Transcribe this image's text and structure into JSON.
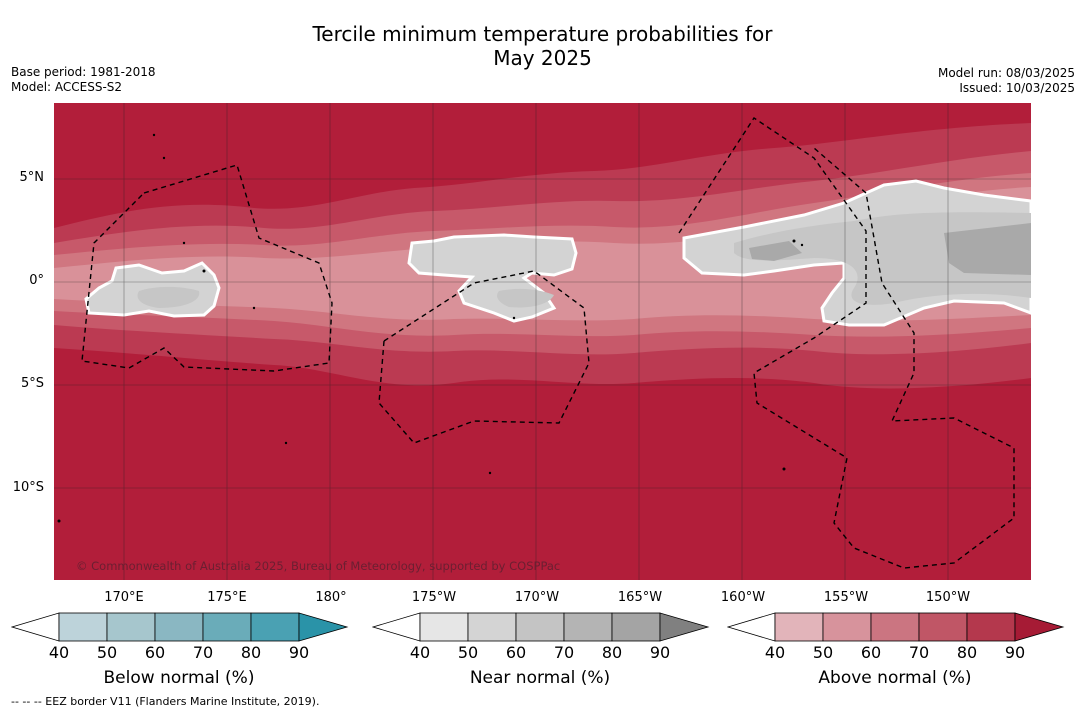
{
  "title_line1": "Tercile minimum temperature probabilities for",
  "title_line2": "May 2025",
  "base_period": "Base period: 1981-2018",
  "model": "Model: ACCESS-S2",
  "model_run": "Model run: 08/03/2025",
  "issued": "Issued: 10/03/2025",
  "copyright": "© Commonwealth of Australia 2025, Bureau of Meteorology, supported by COSPPac",
  "footer": "--  --  -- EEZ border V11 (Flanders Marine Institute, 2019).",
  "latitude_labels": [
    "5°N",
    "0°",
    "5°S",
    "10°S"
  ],
  "longitude_labels": [
    "170°E",
    "175°E",
    "180°",
    "175°W",
    "170°W",
    "165°W",
    "160°W",
    "155°W",
    "150°W"
  ],
  "colorbars": [
    {
      "name": "Below normal (%)",
      "ticks": [
        "40",
        "50",
        "60",
        "70",
        "80",
        "90"
      ],
      "colors": [
        "#ffffff",
        "#bdd3da",
        "#a6c6cd",
        "#8ab7c2",
        "#6aacb9",
        "#4aa1b3",
        "#2a93a8"
      ]
    },
    {
      "name": "Near normal (%)",
      "ticks": [
        "40",
        "50",
        "60",
        "70",
        "80",
        "90"
      ],
      "colors": [
        "#ffffff",
        "#e6e6e6",
        "#d4d4d4",
        "#c4c4c4",
        "#b4b4b4",
        "#a4a4a4",
        "#808080"
      ]
    },
    {
      "name": "Above normal (%)",
      "ticks": [
        "40",
        "50",
        "60",
        "70",
        "80",
        "90"
      ],
      "colors": [
        "#ffffff",
        "#e2b4ba",
        "#d7939c",
        "#cb7581",
        "#c05666",
        "#b4384d",
        "#a61b35"
      ]
    }
  ],
  "colors": {
    "above_90": "#b21e3a",
    "above_80": "#bb3a52",
    "above_70": "#c7596a",
    "above_60": "#d07680",
    "above_50": "#d99199",
    "near_50": "#d3d3d3",
    "near_60": "#c6c6c6",
    "near_70": "#a9a9a9"
  }
}
